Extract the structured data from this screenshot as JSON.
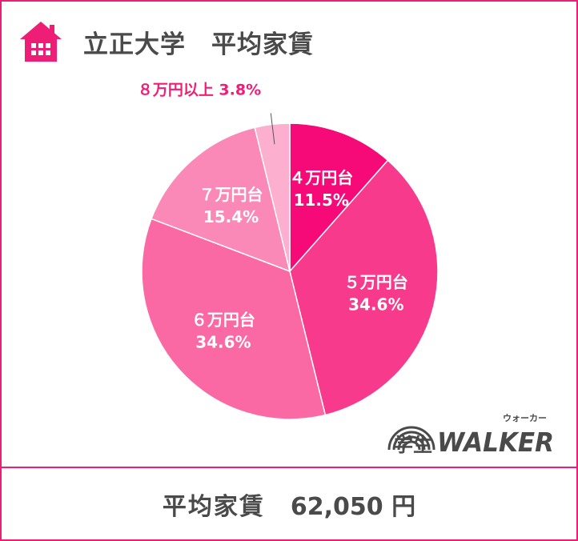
{
  "header": {
    "title": "立正大学　平均家賃",
    "icon": "house-icon"
  },
  "footer": {
    "label": "平均家賃",
    "value": "62,050 円"
  },
  "logo": {
    "kanji": "学生",
    "word": "WALKER",
    "ruby": "ウォーカー"
  },
  "colors": {
    "frame": "#ee1e76",
    "title_text": "#4a4a4a",
    "outside_label": "#ee1e76"
  },
  "chart_data": {
    "type": "pie",
    "title": "立正大学　平均家賃",
    "slices": [
      {
        "name": "４万円台",
        "value": 11.5,
        "label": "11.5%",
        "color": "#f50a78"
      },
      {
        "name": "５万円台",
        "value": 34.6,
        "label": "34.6%",
        "color": "#f73a8b"
      },
      {
        "name": "６万円台",
        "value": 34.6,
        "label": "34.6%",
        "color": "#fa69a3"
      },
      {
        "name": "７万円台",
        "value": 15.4,
        "label": "15.4%",
        "color": "#fb89b7"
      },
      {
        "name": "８万円以上",
        "value": 3.8,
        "label": "3.8%",
        "color": "#fdafcf"
      }
    ],
    "start": "top",
    "direction": "clockwise"
  }
}
